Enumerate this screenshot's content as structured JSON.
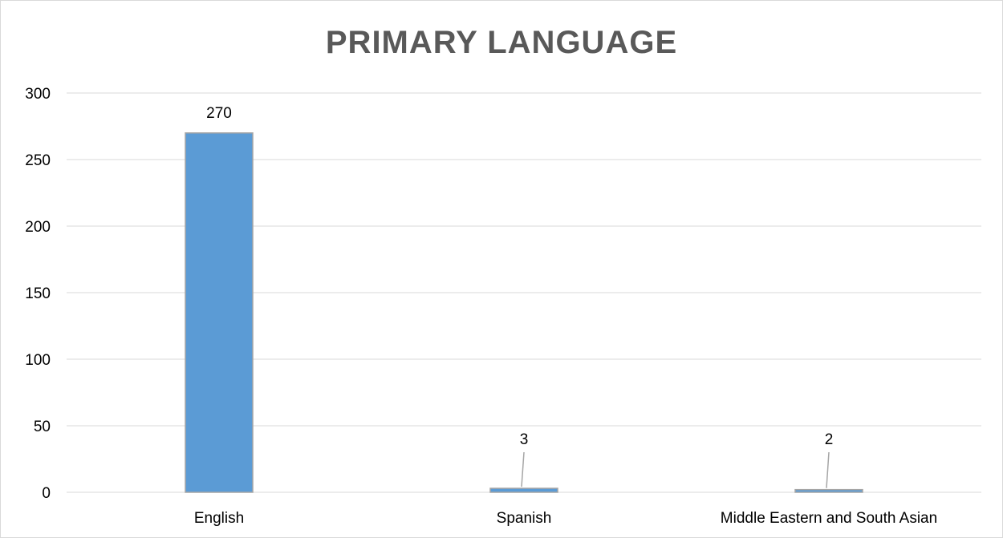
{
  "chart_data": {
    "type": "bar",
    "title": "PRIMARY LANGUAGE",
    "xlabel": "",
    "ylabel": "",
    "categories": [
      "English",
      "Spanish",
      "Middle Eastern and South Asian"
    ],
    "values": [
      270,
      3,
      2
    ],
    "data_labels": [
      "270",
      "3",
      "2"
    ],
    "ylim": [
      0,
      300
    ],
    "yticks": [
      0,
      50,
      100,
      150,
      200,
      250,
      300
    ],
    "ytick_labels": [
      "0",
      "50",
      "100",
      "150",
      "200",
      "250",
      "300"
    ],
    "grid": true,
    "legend": "none",
    "colors": {
      "bar_fill": "#5b9bd5",
      "bar_stroke": "#a5a5a5",
      "gridline": "#d9d9d9",
      "title": "#595959",
      "leader_line": "#a6a6a6"
    }
  }
}
